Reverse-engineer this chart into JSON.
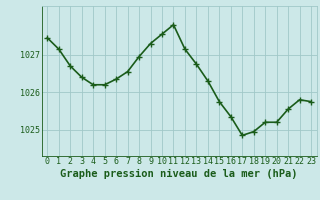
{
  "x": [
    0,
    1,
    2,
    3,
    4,
    5,
    6,
    7,
    8,
    9,
    10,
    11,
    12,
    13,
    14,
    15,
    16,
    17,
    18,
    19,
    20,
    21,
    22,
    23
  ],
  "y": [
    1027.45,
    1027.15,
    1026.7,
    1026.4,
    1026.2,
    1026.2,
    1026.35,
    1026.55,
    1026.95,
    1027.3,
    1027.55,
    1027.8,
    1027.15,
    1026.75,
    1026.3,
    1025.75,
    1025.35,
    1024.85,
    1024.95,
    1025.2,
    1025.2,
    1025.55,
    1025.8,
    1025.75
  ],
  "line_color": "#1a5c1a",
  "marker": "+",
  "marker_size": 4,
  "bg_color": "#cce8e8",
  "grid_color": "#a0c8c8",
  "ylabel_ticks": [
    1025,
    1026,
    1027
  ],
  "ylim": [
    1024.3,
    1028.3
  ],
  "xlim": [
    -0.5,
    23.5
  ],
  "xlabel": "Graphe pression niveau de la mer (hPa)",
  "xlabel_fontsize": 7.5,
  "tick_label_fontsize": 6,
  "line_width": 1.2
}
